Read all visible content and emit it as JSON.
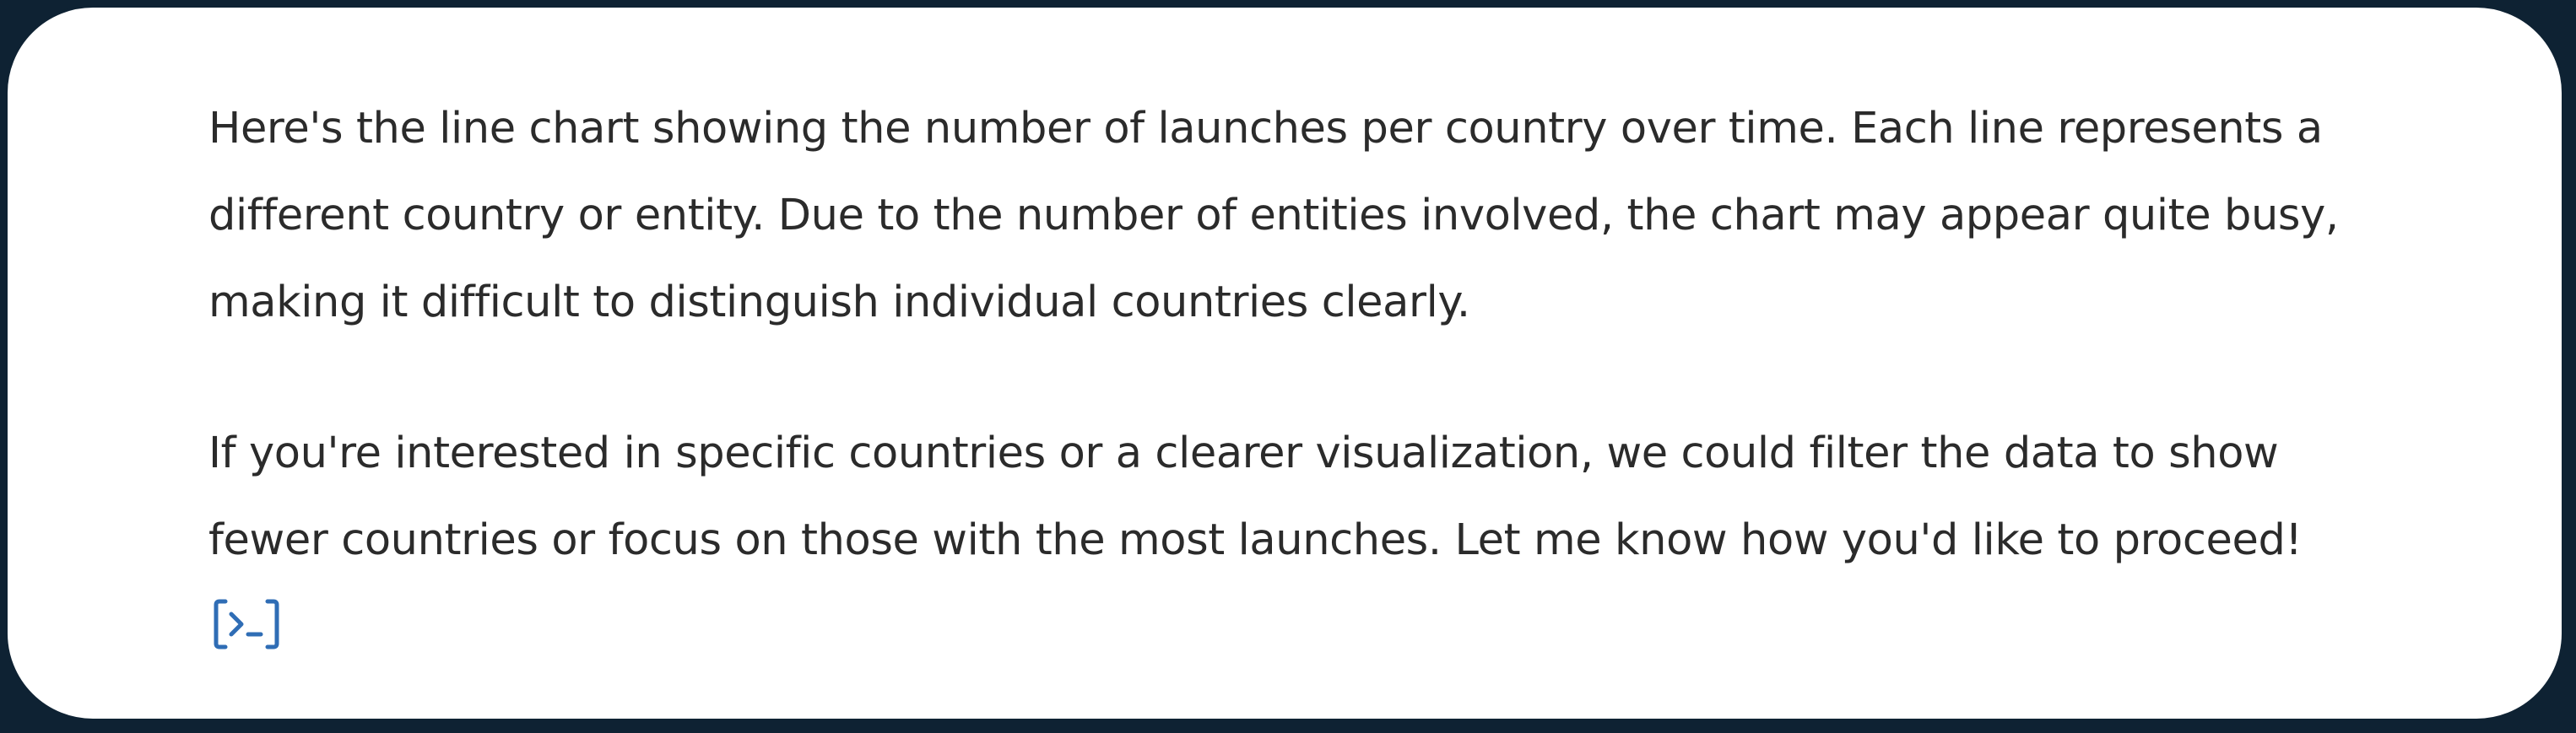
{
  "message": {
    "paragraphs": [
      "Here's the line chart showing the number of launches per country over time. Each line represents a\ndifferent country or entity. Due to the number of entities involved, the chart may appear quite busy,\nmaking it difficult to distinguish individual countries clearly.",
      "If you're interested in specific countries or a clearer visualization, we could filter the data to show\nfewer countries or focus on those with the most launches. Let me know how you'd like to proceed!"
    ]
  },
  "actions": {
    "code_icon": "code-terminal-icon"
  },
  "colors": {
    "frame": "#0e2233",
    "text": "#2b2b2b",
    "icon": "#2f6db5",
    "background": "#ffffff"
  }
}
